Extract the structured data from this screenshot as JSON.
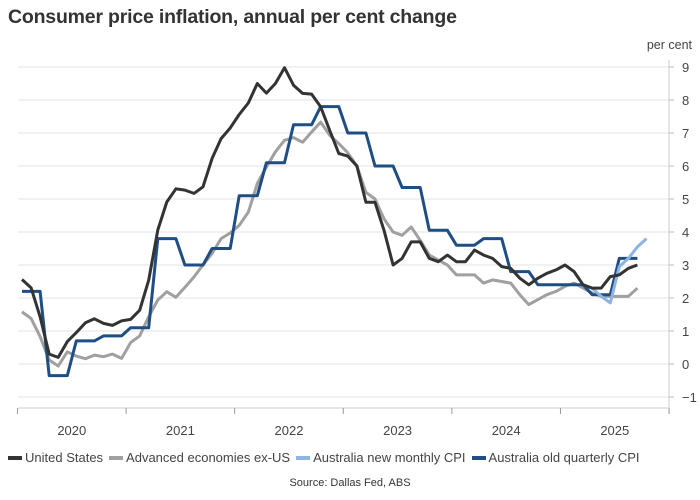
{
  "chart_data": {
    "type": "line",
    "title": "Consumer price inflation, annual per cent change",
    "ylabel": "per cent",
    "ylim": [
      -1,
      9
    ],
    "yticks": [
      -1,
      0,
      1,
      2,
      3,
      4,
      5,
      6,
      7,
      8,
      9
    ],
    "xlabels": [
      "2020",
      "2021",
      "2022",
      "2023",
      "2024",
      "2025"
    ],
    "x_start": "Jan 2020",
    "x_unit": "month",
    "grid": true,
    "legend_position": "bottom",
    "source": "Source: Dallas Fed, ABS",
    "series": [
      {
        "name": "United States",
        "color": "#333333",
        "start_index": 0,
        "values": [
          2.56,
          2.31,
          1.43,
          0.3,
          0.2,
          0.68,
          0.95,
          1.25,
          1.37,
          1.23,
          1.17,
          1.31,
          1.35,
          1.63,
          2.54,
          4.06,
          4.91,
          5.31,
          5.27,
          5.17,
          5.37,
          6.23,
          6.83,
          7.15,
          7.56,
          7.91,
          8.5,
          8.21,
          8.5,
          8.98,
          8.45,
          8.2,
          8.18,
          7.79,
          7.08,
          6.38,
          6.3,
          6.0,
          4.9,
          4.9,
          4.05,
          3.0,
          3.2,
          3.7,
          3.7,
          3.2,
          3.1,
          3.3,
          3.1,
          3.1,
          3.45,
          3.3,
          3.2,
          2.95,
          2.9,
          2.6,
          2.4,
          2.6,
          2.75,
          2.85,
          3.0,
          2.8,
          2.4,
          2.3,
          2.3,
          2.65,
          2.7,
          2.9,
          3.0
        ]
      },
      {
        "name": "Advanced economies ex-US",
        "color": "#a0a0a0",
        "start_index": 0,
        "values": [
          1.58,
          1.38,
          0.83,
          0.12,
          -0.06,
          0.37,
          0.24,
          0.16,
          0.27,
          0.22,
          0.3,
          0.17,
          0.65,
          0.85,
          1.43,
          1.94,
          2.19,
          2.02,
          2.32,
          2.64,
          3.0,
          3.35,
          3.8,
          3.97,
          4.2,
          4.6,
          5.47,
          5.97,
          6.43,
          6.78,
          6.86,
          6.72,
          7.03,
          7.33,
          6.93,
          6.68,
          6.4,
          6.0,
          5.2,
          5.0,
          4.4,
          4.0,
          3.9,
          4.15,
          3.75,
          3.3,
          3.15,
          3.0,
          2.7,
          2.7,
          2.7,
          2.45,
          2.55,
          2.5,
          2.45,
          2.1,
          1.8,
          1.95,
          2.1,
          2.2,
          2.35,
          2.45,
          2.3,
          2.15,
          2.05,
          2.05,
          2.05,
          2.05,
          2.3
        ]
      },
      {
        "name": "Australia new monthly CPI",
        "color": "#8db4e2",
        "start_index": 62,
        "values": [
          2.4,
          2.3,
          2.05,
          1.85,
          2.95,
          3.2,
          3.55,
          3.8
        ]
      },
      {
        "name": "Australia old quarterly CPI",
        "color": "#1f4e85",
        "start_index": 0,
        "values": [
          2.2,
          2.2,
          2.2,
          -0.35,
          -0.35,
          -0.35,
          0.7,
          0.7,
          0.7,
          0.85,
          0.85,
          0.85,
          1.1,
          1.1,
          1.1,
          3.8,
          3.8,
          3.8,
          3.0,
          3.0,
          3.0,
          3.5,
          3.5,
          3.5,
          5.1,
          5.1,
          5.1,
          6.1,
          6.1,
          6.1,
          7.25,
          7.25,
          7.25,
          7.8,
          7.8,
          7.8,
          7.0,
          7.0,
          7.0,
          6.0,
          6.0,
          6.0,
          5.35,
          5.35,
          5.35,
          4.05,
          4.05,
          4.05,
          3.6,
          3.6,
          3.6,
          3.8,
          3.8,
          3.8,
          2.8,
          2.8,
          2.8,
          2.4,
          2.4,
          2.4,
          2.4,
          2.4,
          2.4,
          2.1,
          2.1,
          2.1,
          3.2,
          3.2,
          3.2
        ]
      }
    ]
  }
}
